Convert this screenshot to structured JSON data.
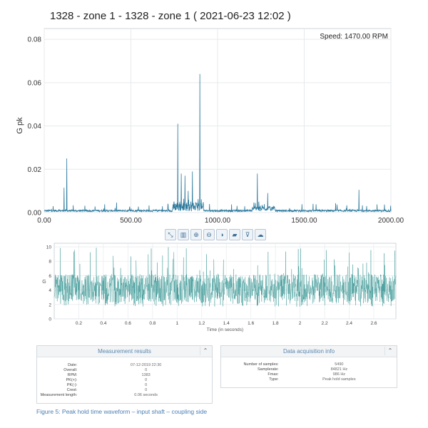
{
  "spectrum": {
    "title": "1328 - zone 1 - 1328 - zone 1 ( 2021-06-23 12:02 )",
    "speed_label": "Speed: 1470.00 RPM",
    "ylabel": "G pk"
  },
  "toolbar": {
    "buttons": [
      {
        "name": "expand-icon",
        "glyph": "⤡"
      },
      {
        "name": "bar-chart-icon",
        "glyph": "▥"
      },
      {
        "name": "zoom-in-icon",
        "glyph": "⊕"
      },
      {
        "name": "zoom-out-icon",
        "glyph": "⊖"
      },
      {
        "name": "contrast-icon",
        "glyph": "◑"
      },
      {
        "name": "comment-icon",
        "glyph": "▰"
      },
      {
        "name": "filter-icon",
        "glyph": "⊽"
      },
      {
        "name": "cloud-download-icon",
        "glyph": "☁"
      }
    ]
  },
  "waveform": {
    "ylabel": "G",
    "xlabel": "Time (in seconds)"
  },
  "measurement": {
    "title": "Measurement results",
    "rows": [
      {
        "key": "Date:",
        "value": "07-12-2019 22:30"
      },
      {
        "key": "Overall:",
        "value": "0"
      },
      {
        "key": "RPM:",
        "value": "1383"
      },
      {
        "key": "PK(+):",
        "value": "0"
      },
      {
        "key": "PK(-):",
        "value": "0"
      },
      {
        "key": "Crest:",
        "value": "0"
      },
      {
        "key": "Measurement length:",
        "value": "0.06 seconds"
      }
    ]
  },
  "acquisition": {
    "title": "Data acquisition info",
    "rows": [
      {
        "key": "Number of samples:",
        "value": "5490"
      },
      {
        "key": "Samplerate:",
        "value": "84821 Hz"
      },
      {
        "key": "Fmax:",
        "value": "986 Hz"
      },
      {
        "key": "Type:",
        "value": "Peak hold samples"
      }
    ]
  },
  "caption": "Figure 5: Peak hold time waveform – input shaft – coupling side",
  "chart_data": [
    {
      "type": "line",
      "title": "1328 - zone 1 - 1328 - zone 1 ( 2021-06-23 12:02 )",
      "xlabel": "",
      "ylabel": "G pk",
      "xlim": [
        0,
        2000
      ],
      "ylim": [
        0,
        0.085
      ],
      "xticks": [
        "0.00",
        "500.00",
        "1000.00",
        "1500.00",
        "2000.00"
      ],
      "yticks": [
        "0.00",
        "0.02",
        "0.04",
        "0.06",
        "0.08"
      ],
      "grid": true,
      "color": "#2e7b9e",
      "peaks": [
        {
          "x": 115,
          "y": 0.0115
        },
        {
          "x": 130,
          "y": 0.025
        },
        {
          "x": 770,
          "y": 0.041
        },
        {
          "x": 790,
          "y": 0.018
        },
        {
          "x": 812,
          "y": 0.017
        },
        {
          "x": 830,
          "y": 0.01
        },
        {
          "x": 855,
          "y": 0.019
        },
        {
          "x": 898,
          "y": 0.064
        },
        {
          "x": 1230,
          "y": 0.018
        },
        {
          "x": 1290,
          "y": 0.009
        },
        {
          "x": 1815,
          "y": 0.0105
        }
      ]
    },
    {
      "type": "line",
      "title": "",
      "xlabel": "Time (in seconds)",
      "ylabel": "G",
      "xlim": [
        0,
        2.78
      ],
      "ylim": [
        0,
        10.5
      ],
      "xticks": [
        "0.2",
        "0.4",
        "0.6",
        "0.8",
        "1",
        "1.2",
        "1.4",
        "1.6",
        "1.8",
        "2",
        "2.2",
        "2.4",
        "2.6"
      ],
      "yticks": [
        "0",
        "2",
        "4",
        "6",
        "8",
        "10"
      ],
      "grid": true,
      "color": "#1f8a86",
      "baseline": 3.5,
      "noise_range": [
        2.3,
        6.2
      ],
      "peak_max": 10
    }
  ]
}
